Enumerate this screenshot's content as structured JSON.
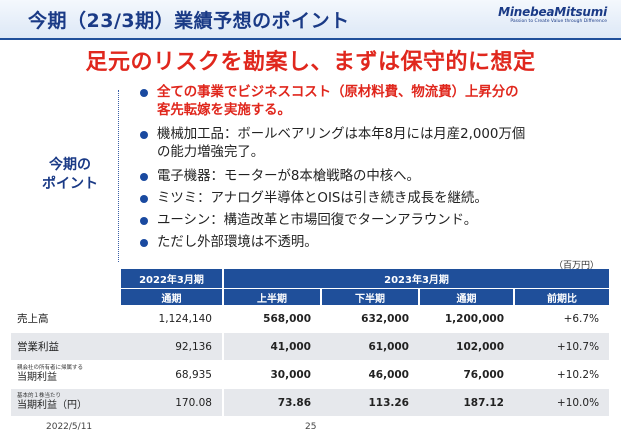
{
  "slide": {
    "title": "今期（23/3期）業績予想のポイント",
    "logo_name": "MinebeaMitsumi",
    "logo_tagline": "Passion to Create Value through Difference",
    "headline": "足元のリスクを勘案し、まずは保守的に想定",
    "points_label_line1": "今期の",
    "points_label_line2": "ポイント",
    "brand_colors": {
      "navy": "#1f4f9a",
      "red": "#e0271d"
    }
  },
  "bullets": [
    {
      "lines": [
        "全ての事業でビジネスコスト（原材料費、物流費）上昇分の",
        "客先転嫁を実施する。"
      ],
      "emphasis": true
    },
    {
      "lines": [
        "機械加工品：ボールベアリングは本年8月には月産2,000万個",
        "の能力増強完了。"
      ],
      "emphasis": false
    },
    {
      "lines": [
        "電子機器：モーターが8本槍戦略の中核へ。"
      ],
      "emphasis": false
    },
    {
      "lines": [
        "ミツミ：アナログ半導体とOISは引き続き成長を継続。"
      ],
      "emphasis": false
    },
    {
      "lines": [
        "ユーシン：構造改革と市場回復でターンアラウンド。"
      ],
      "emphasis": false
    },
    {
      "lines": [
        "ただし外部環境は不透明。"
      ],
      "emphasis": false
    }
  ],
  "table": {
    "unit": "（百万円）",
    "header_prev_year": "2022年3月期",
    "header_this_year": "2023年3月期",
    "columns": [
      "通期",
      "上半期",
      "下半期",
      "通期",
      "前期比"
    ],
    "rows": [
      {
        "label_note": "",
        "label": "売上高",
        "values": [
          "1,124,140",
          "568,000",
          "632,000",
          "1,200,000",
          "+6.7%"
        ]
      },
      {
        "label_note": "",
        "label": "営業利益",
        "values": [
          "92,136",
          "41,000",
          "61,000",
          "102,000",
          "+10.7%"
        ]
      },
      {
        "label_note": "親会社の所有者に帰属する",
        "label": "当期利益",
        "values": [
          "68,935",
          "30,000",
          "46,000",
          "76,000",
          "+10.2%"
        ]
      },
      {
        "label_note": "基本的１株当たり",
        "label": "当期利益（円）",
        "values": [
          "170.08",
          "73.86",
          "113.26",
          "187.12",
          "+10.0%"
        ]
      }
    ]
  },
  "footer": {
    "date": "2022/5/11",
    "page": "25"
  }
}
